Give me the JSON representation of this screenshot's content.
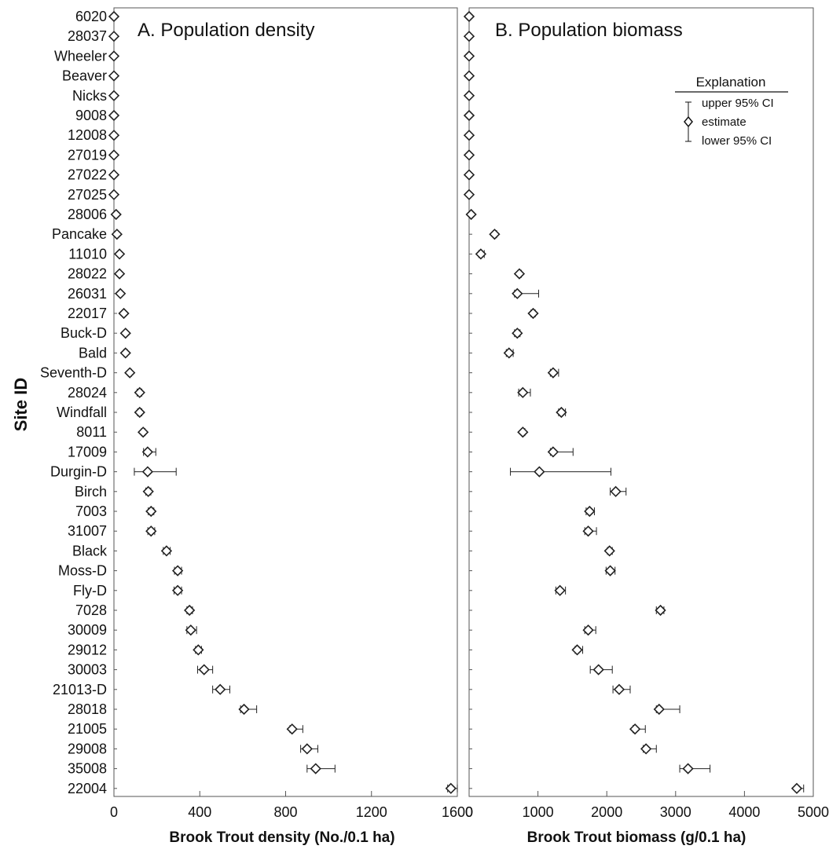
{
  "chart_data": {
    "type": "scatter",
    "ylabel": "Site ID",
    "sites": [
      "6020",
      "28037",
      "Wheeler",
      "Beaver",
      "Nicks",
      "9008",
      "12008",
      "27019",
      "27022",
      "27025",
      "28006",
      "Pancake",
      "11010",
      "28022",
      "26031",
      "22017",
      "Buck-D",
      "Bald",
      "Seventh-D",
      "28024",
      "Windfall",
      "8011",
      "17009",
      "Durgin-D",
      "Birch",
      "7003",
      "31007",
      "Black",
      "Moss-D",
      "Fly-D",
      "7028",
      "30009",
      "29012",
      "30003",
      "21013-D",
      "28018",
      "21005",
      "29008",
      "35008",
      "22004"
    ],
    "panels": [
      {
        "title": "A. Population density",
        "xlabel": "Brook Trout density (No./0.1 ha)",
        "xlim": [
          0,
          1600
        ],
        "xticks": [
          0,
          400,
          800,
          1200,
          1600
        ],
        "xtick_labels": [
          "0",
          "400",
          "800",
          "1200",
          "1600"
        ],
        "estimate": [
          0,
          0,
          0,
          0,
          0,
          0,
          0,
          0,
          0,
          0,
          10,
          14,
          26,
          26,
          30,
          46,
          54,
          54,
          74,
          120,
          120,
          136,
          157,
          157,
          160,
          173,
          173,
          245,
          297,
          297,
          352,
          358,
          393,
          420,
          495,
          606,
          830,
          900,
          940,
          1570
        ],
        "lower": [
          0,
          0,
          0,
          0,
          0,
          0,
          0,
          0,
          0,
          0,
          8,
          11,
          20,
          22,
          25,
          40,
          48,
          46,
          67,
          108,
          110,
          128,
          138,
          95,
          148,
          160,
          158,
          230,
          282,
          280,
          340,
          340,
          380,
          390,
          460,
          590,
          820,
          870,
          900,
          1555
        ],
        "upper": [
          0,
          0,
          0,
          0,
          0,
          0,
          0,
          0,
          0,
          0,
          12,
          17,
          30,
          30,
          36,
          52,
          60,
          62,
          82,
          130,
          130,
          145,
          195,
          290,
          172,
          186,
          190,
          262,
          315,
          315,
          366,
          385,
          408,
          460,
          540,
          665,
          880,
          950,
          1030,
          1600
        ]
      },
      {
        "title": "B. Population biomass",
        "xlabel": "Brook Trout biomass (g/0.1 ha)",
        "xlim": [
          0,
          5000
        ],
        "xticks": [
          0,
          1000,
          2000,
          3000,
          4000,
          5000
        ],
        "xtick_labels": [
          "0",
          "1000",
          "2000",
          "3000",
          "4000",
          "5000"
        ],
        "estimate": [
          0,
          0,
          0,
          0,
          0,
          0,
          0,
          0,
          0,
          0,
          30,
          370,
          170,
          730,
          700,
          930,
          700,
          580,
          1220,
          780,
          1340,
          780,
          1220,
          1020,
          2130,
          1750,
          1730,
          2040,
          2050,
          1320,
          2780,
          1730,
          1570,
          1880,
          2180,
          2760,
          2410,
          2570,
          3180,
          4760
        ],
        "lower": [
          0,
          0,
          0,
          0,
          0,
          0,
          0,
          0,
          0,
          0,
          20,
          350,
          140,
          710,
          660,
          900,
          660,
          540,
          1180,
          720,
          1300,
          760,
          1180,
          600,
          2050,
          1700,
          1680,
          2010,
          1990,
          1260,
          2720,
          1680,
          1540,
          1760,
          2090,
          2720,
          2380,
          2530,
          3060,
          4740
        ],
        "upper": [
          0,
          0,
          0,
          0,
          0,
          0,
          0,
          0,
          0,
          0,
          50,
          400,
          220,
          760,
          1010,
          960,
          740,
          640,
          1300,
          890,
          1400,
          810,
          1510,
          2060,
          2280,
          1820,
          1850,
          2080,
          2120,
          1400,
          2830,
          1840,
          1650,
          2080,
          2340,
          3060,
          2560,
          2720,
          3500,
          4860
        ]
      }
    ],
    "legend": {
      "title": "Explanation",
      "upper": "upper 95% CI",
      "estimate": "estimate",
      "lower": "lower 95% CI",
      "position": "top-right of panel B"
    }
  }
}
